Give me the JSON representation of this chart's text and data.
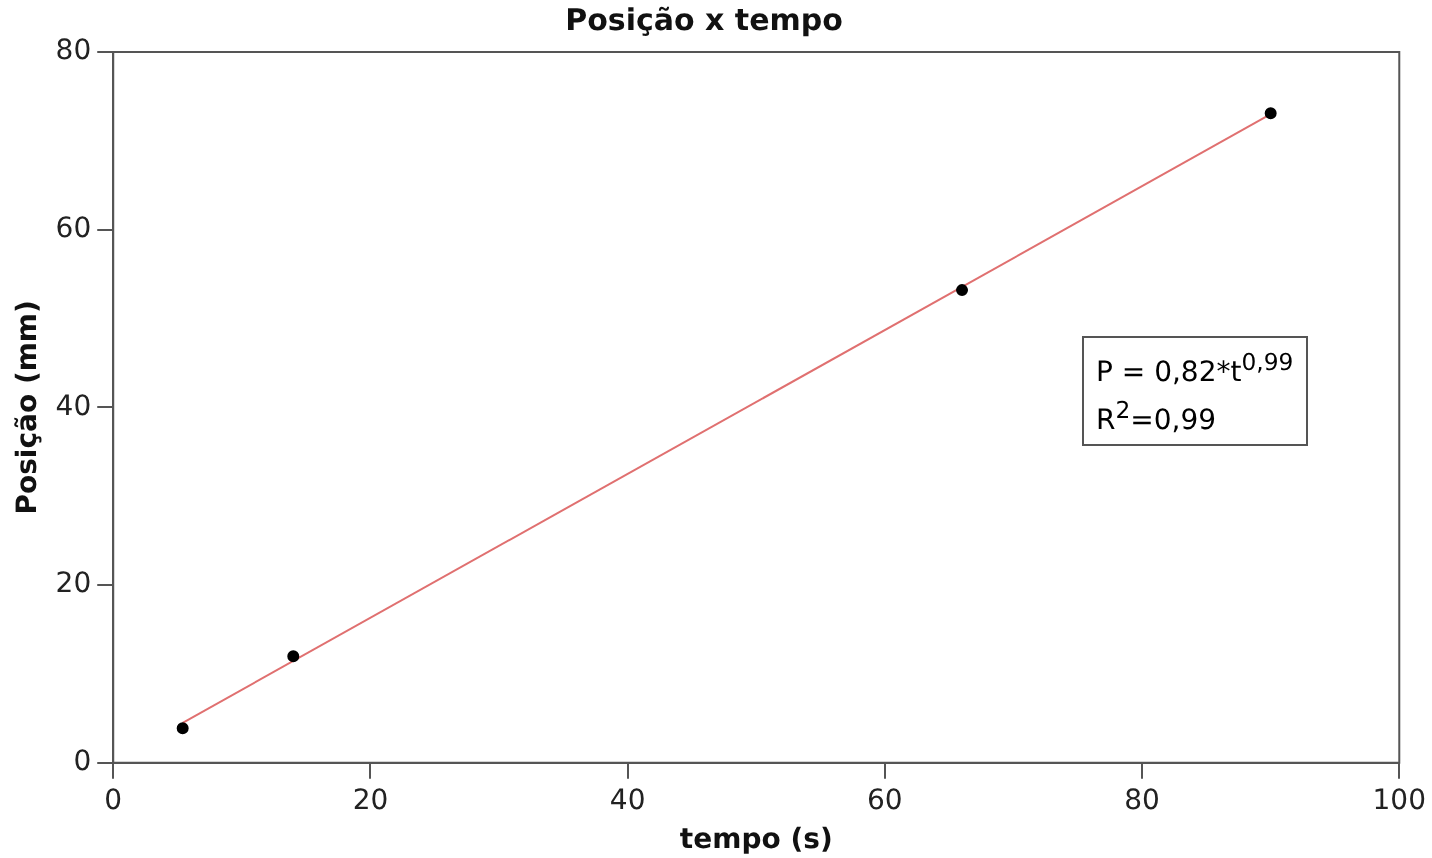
{
  "chart_data": {
    "type": "scatter",
    "title": "Posição x tempo",
    "xlabel": "tempo (s)",
    "ylabel": "Posição (mm)",
    "xlim": [
      0,
      100
    ],
    "xticks": [
      0,
      20,
      40,
      60,
      80,
      100
    ],
    "ylim": [
      0,
      80
    ],
    "yticks": [
      0,
      20,
      40,
      60,
      80
    ],
    "series": [
      {
        "color": "#000000",
        "x": [
          5.4,
          14,
          66,
          90
        ],
        "values": [
          3.9,
          12,
          53.2,
          73.1
        ]
      },
      {
        "type": "line",
        "color": "#e07070",
        "x": [
          5.4,
          90
        ],
        "values": [
          4.5,
          73
        ]
      }
    ],
    "annotations": [
      "P = 0,82*t$^{0,99}$\nR$^{2}$=0,99"
    ],
    "grid": false,
    "legend": false
  }
}
